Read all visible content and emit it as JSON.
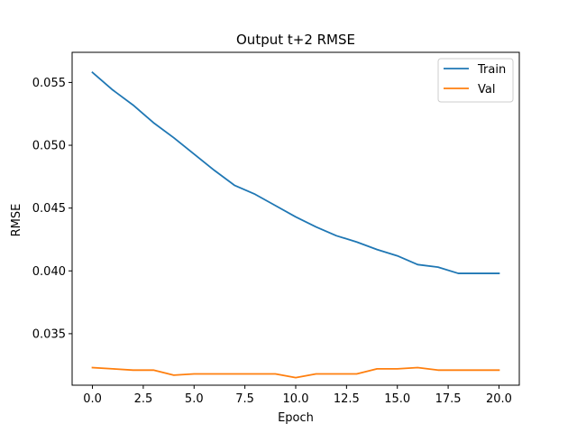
{
  "chart_data": {
    "type": "line",
    "title": "Output t+2 RMSE",
    "xlabel": "Epoch",
    "ylabel": "RMSE",
    "xlim": [
      -1,
      21
    ],
    "ylim": [
      0.0309,
      0.0574
    ],
    "xticks": [
      0,
      2.5,
      5,
      7.5,
      10,
      12.5,
      15,
      17.5,
      20
    ],
    "xtick_labels": [
      "0.0",
      "2.5",
      "5.0",
      "7.5",
      "10.0",
      "12.5",
      "15.0",
      "17.5",
      "20.0"
    ],
    "yticks": [
      0.035,
      0.04,
      0.045,
      0.05,
      0.055
    ],
    "ytick_labels": [
      "0.035",
      "0.040",
      "0.045",
      "0.050",
      "0.055"
    ],
    "grid": false,
    "legend": "top-right",
    "x": [
      0,
      1,
      2,
      3,
      4,
      5,
      6,
      7,
      8,
      9,
      10,
      11,
      12,
      13,
      14,
      15,
      16,
      17,
      18,
      19,
      20
    ],
    "series": [
      {
        "name": "Train",
        "color": "#1f77b4",
        "values": [
          0.0558,
          0.0544,
          0.0532,
          0.0518,
          0.0506,
          0.0493,
          0.048,
          0.0468,
          0.0461,
          0.0452,
          0.0443,
          0.0435,
          0.0428,
          0.0423,
          0.0417,
          0.0412,
          0.0405,
          0.0403,
          0.0398,
          0.0398,
          0.0398
        ]
      },
      {
        "name": "Val",
        "color": "#ff7f0e",
        "values": [
          0.0323,
          0.0322,
          0.0321,
          0.0321,
          0.0317,
          0.0318,
          0.0318,
          0.0318,
          0.0318,
          0.0318,
          0.0315,
          0.0318,
          0.0318,
          0.0318,
          0.0322,
          0.0322,
          0.0323,
          0.0321,
          0.0321,
          0.0321,
          0.0321
        ]
      }
    ]
  }
}
